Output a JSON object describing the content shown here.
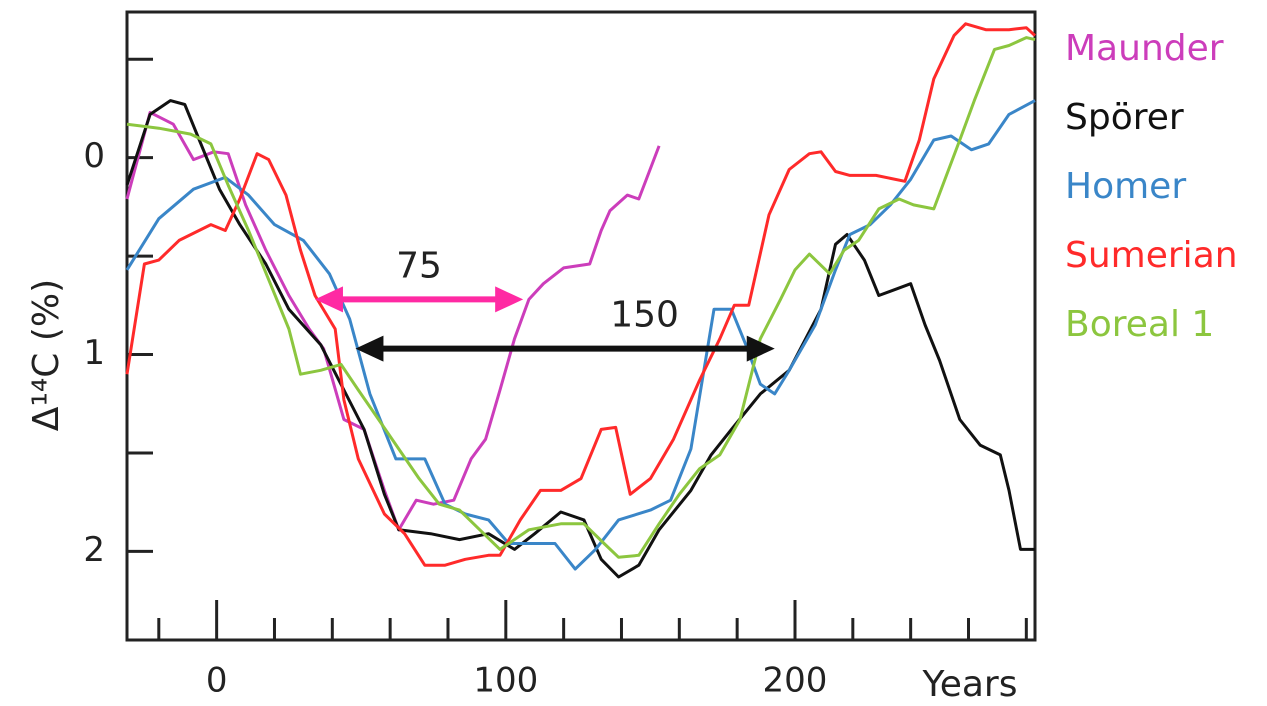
{
  "chart_data": {
    "type": "line",
    "ylabel": "Δ¹⁴C (%)",
    "xlabel": "Years",
    "xlim": [
      -31,
      283
    ],
    "ylim": [
      -0.74,
      2.45
    ],
    "y_inverted": true,
    "xticks": [
      0,
      100,
      200
    ],
    "xminor_ticks": [
      -20,
      20,
      40,
      60,
      80,
      120,
      140,
      160,
      180,
      220,
      240,
      260,
      280
    ],
    "yticks": [
      0,
      1,
      2
    ],
    "yminor_ticks": [
      -0.5,
      0.5,
      1.5
    ],
    "legend": "right",
    "series": [
      {
        "name": "Maunder",
        "color": "#cc3dbb",
        "x": [
          -31,
          -23,
          -15,
          -8,
          -1,
          4,
          10,
          17,
          25,
          32,
          37,
          44,
          51,
          58,
          63,
          69,
          75,
          82,
          88,
          93,
          98,
          103,
          108,
          113,
          120,
          129,
          133,
          136,
          142,
          146,
          153
        ],
        "values": [
          0.21,
          -0.23,
          -0.17,
          0.01,
          -0.03,
          -0.02,
          0.24,
          0.47,
          0.7,
          0.87,
          0.97,
          1.33,
          1.38,
          1.69,
          1.89,
          1.74,
          1.76,
          1.74,
          1.53,
          1.43,
          1.18,
          0.92,
          0.72,
          0.64,
          0.56,
          0.54,
          0.37,
          0.27,
          0.19,
          0.21,
          -0.06
        ]
      },
      {
        "name": "Spörer",
        "color": "#111111",
        "x": [
          -31,
          -23,
          -16,
          -11,
          -6,
          1,
          8,
          17,
          25,
          36,
          44,
          51,
          58,
          63,
          74,
          84,
          94,
          103,
          110,
          119,
          127,
          133,
          139,
          146,
          153,
          164,
          171,
          178,
          188,
          198,
          209,
          214,
          218,
          224,
          229,
          240,
          245,
          250,
          257,
          264,
          271,
          274,
          278,
          283
        ],
        "values": [
          0.14,
          -0.22,
          -0.29,
          -0.27,
          -0.09,
          0.16,
          0.34,
          0.54,
          0.77,
          0.95,
          1.18,
          1.38,
          1.71,
          1.89,
          1.91,
          1.94,
          1.91,
          1.99,
          1.91,
          1.8,
          1.84,
          2.04,
          2.13,
          2.07,
          1.89,
          1.69,
          1.51,
          1.38,
          1.2,
          1.08,
          0.77,
          0.44,
          0.39,
          0.52,
          0.7,
          0.64,
          0.85,
          1.03,
          1.33,
          1.46,
          1.51,
          1.69,
          1.99,
          1.99
        ]
      },
      {
        "name": "Homer",
        "color": "#3a86c8",
        "x": [
          -31,
          -20,
          -8,
          3,
          11,
          20,
          30,
          39,
          46,
          53,
          62,
          72,
          79,
          86,
          94,
          101,
          112,
          117,
          124,
          131,
          139,
          150,
          157,
          164,
          172,
          178,
          183,
          188,
          193,
          198,
          207,
          214,
          219,
          226,
          233,
          240,
          248,
          254,
          261,
          267,
          274,
          283
        ],
        "values": [
          0.57,
          0.31,
          0.16,
          0.1,
          0.19,
          0.34,
          0.42,
          0.59,
          0.82,
          1.2,
          1.53,
          1.53,
          1.76,
          1.81,
          1.84,
          1.96,
          1.96,
          1.96,
          2.09,
          1.99,
          1.84,
          1.79,
          1.74,
          1.48,
          0.77,
          0.77,
          0.95,
          1.15,
          1.2,
          1.08,
          0.85,
          0.57,
          0.39,
          0.34,
          0.24,
          0.11,
          -0.09,
          -0.11,
          -0.04,
          -0.07,
          -0.22,
          -0.29
        ]
      },
      {
        "name": "Sumerian",
        "color": "#ff2a2a",
        "x": [
          -31,
          -25,
          -20,
          -13,
          -2,
          3,
          8,
          14,
          18,
          24,
          29,
          34,
          41,
          44,
          49,
          58,
          65,
          72,
          79,
          86,
          94,
          98,
          105,
          112,
          119,
          126,
          133,
          138,
          143,
          150,
          158,
          167,
          174,
          179,
          184,
          191,
          198,
          205,
          209,
          214,
          219,
          228,
          238,
          243,
          248,
          255,
          259,
          266,
          274,
          280,
          283
        ],
        "values": [
          1.1,
          0.54,
          0.52,
          0.42,
          0.34,
          0.37,
          0.21,
          -0.02,
          0.01,
          0.19,
          0.47,
          0.7,
          0.87,
          1.23,
          1.53,
          1.81,
          1.91,
          2.07,
          2.07,
          2.04,
          2.02,
          2.02,
          1.84,
          1.69,
          1.69,
          1.63,
          1.38,
          1.37,
          1.71,
          1.63,
          1.43,
          1.13,
          0.92,
          0.75,
          0.75,
          0.29,
          0.06,
          -0.02,
          -0.03,
          0.07,
          0.09,
          0.09,
          0.12,
          -0.09,
          -0.4,
          -0.62,
          -0.68,
          -0.65,
          -0.65,
          -0.66,
          -0.62
        ]
      },
      {
        "name": "Boreal 1",
        "color": "#8cc63f",
        "x": [
          -31,
          -20,
          -9,
          -2,
          4,
          11,
          18,
          25,
          29,
          36,
          43,
          49,
          56,
          63,
          70,
          77,
          84,
          91,
          98,
          108,
          119,
          127,
          134,
          139,
          146,
          153,
          160,
          167,
          174,
          181,
          188,
          195,
          200,
          205,
          212,
          217,
          222,
          229,
          236,
          241,
          248,
          257,
          262,
          269,
          274,
          280,
          283
        ],
        "values": [
          -0.17,
          -0.15,
          -0.12,
          -0.07,
          0.14,
          0.37,
          0.62,
          0.87,
          1.1,
          1.08,
          1.05,
          1.18,
          1.33,
          1.48,
          1.63,
          1.76,
          1.79,
          1.89,
          1.99,
          1.89,
          1.86,
          1.86,
          1.96,
          2.03,
          2.02,
          1.86,
          1.71,
          1.58,
          1.51,
          1.33,
          0.92,
          0.72,
          0.57,
          0.49,
          0.59,
          0.47,
          0.42,
          0.26,
          0.21,
          0.24,
          0.26,
          -0.09,
          -0.29,
          -0.55,
          -0.57,
          -0.61,
          -0.6
        ]
      }
    ],
    "annotations": [
      {
        "text": "75",
        "color": "#ff2aa3",
        "x1": 34,
        "x2": 106,
        "y": 0.72,
        "label_x": 70
      },
      {
        "text": "150",
        "color": "#111111",
        "x1": 48,
        "x2": 193,
        "y": 0.97,
        "label_x": 148
      }
    ]
  }
}
